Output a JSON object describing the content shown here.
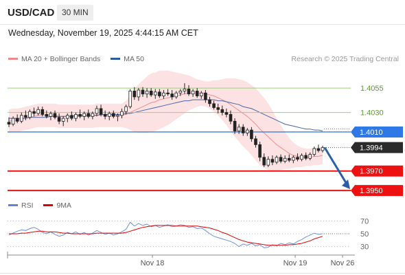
{
  "header": {
    "pair": "USD/CAD",
    "timeframe": "30 MIN",
    "datetime": "Wednesday, November 19, 2025 4:44:15 AM CET"
  },
  "legend": {
    "items": [
      {
        "label": "MA 20 + Bollinger Bands",
        "color": "#f08a8a"
      },
      {
        "label": "MA 50",
        "color": "#2a5b9e"
      }
    ],
    "credit": "Research © 2025 Trading Central"
  },
  "rsi_legend": {
    "items": [
      {
        "label": "RSI",
        "color": "#5b84d6"
      },
      {
        "label": "9MA",
        "color": "#e00000"
      }
    ]
  },
  "chart_data": {
    "type": "candlestick",
    "y_range": [
      1.3943,
      1.4072
    ],
    "levels": [
      {
        "value": 1.4055,
        "label": "1.4055",
        "style": "green-thin"
      },
      {
        "value": 1.403,
        "label": "1.4030",
        "style": "green-thin"
      },
      {
        "value": 1.401,
        "label": "1.4010",
        "style": "blue-badge"
      },
      {
        "value": 1.3994,
        "label": "1.3994",
        "style": "current-price"
      },
      {
        "value": 1.397,
        "label": "1.3970",
        "style": "red-badge"
      },
      {
        "value": 1.395,
        "label": "1.3950",
        "style": "red-badge"
      }
    ],
    "x_labels": [
      "Nov 18",
      "Nov 19",
      "Nov 26"
    ],
    "candles_ohlc": [
      [
        1.402,
        1.4025,
        1.4015,
        1.4018
      ],
      [
        1.4018,
        1.4026,
        1.4016,
        1.4024
      ],
      [
        1.4024,
        1.4028,
        1.4019,
        1.4021
      ],
      [
        1.4021,
        1.403,
        1.4019,
        1.4027
      ],
      [
        1.4027,
        1.4032,
        1.4022,
        1.4025
      ],
      [
        1.4025,
        1.4033,
        1.4023,
        1.4031
      ],
      [
        1.4031,
        1.4035,
        1.4026,
        1.4029
      ],
      [
        1.4029,
        1.4036,
        1.4027,
        1.4033
      ],
      [
        1.4033,
        1.4036,
        1.4026,
        1.4028
      ],
      [
        1.4028,
        1.4032,
        1.4024,
        1.4026
      ],
      [
        1.4026,
        1.4031,
        1.4022,
        1.4029
      ],
      [
        1.4029,
        1.4032,
        1.4023,
        1.4025
      ],
      [
        1.4025,
        1.4029,
        1.4018,
        1.4021
      ],
      [
        1.4021,
        1.4026,
        1.4016,
        1.4024
      ],
      [
        1.4024,
        1.4029,
        1.402,
        1.4027
      ],
      [
        1.4027,
        1.4031,
        1.4022,
        1.4024
      ],
      [
        1.4024,
        1.403,
        1.4021,
        1.4028
      ],
      [
        1.4028,
        1.4033,
        1.4024,
        1.4026
      ],
      [
        1.4026,
        1.4031,
        1.4022,
        1.4029
      ],
      [
        1.4029,
        1.4033,
        1.4024,
        1.4026
      ],
      [
        1.4026,
        1.4031,
        1.4023,
        1.4029
      ],
      [
        1.4029,
        1.4037,
        1.4026,
        1.4034
      ],
      [
        1.4034,
        1.4038,
        1.4026,
        1.4028
      ],
      [
        1.4028,
        1.4032,
        1.4023,
        1.4026
      ],
      [
        1.4026,
        1.4031,
        1.4022,
        1.4029
      ],
      [
        1.4029,
        1.4032,
        1.4024,
        1.4026
      ],
      [
        1.4026,
        1.4029,
        1.4021,
        1.4027
      ],
      [
        1.4027,
        1.4034,
        1.4024,
        1.4031
      ],
      [
        1.4031,
        1.4038,
        1.4028,
        1.4036
      ],
      [
        1.4036,
        1.4054,
        1.4034,
        1.4052
      ],
      [
        1.4052,
        1.4056,
        1.4043,
        1.4046
      ],
      [
        1.4046,
        1.4055,
        1.4042,
        1.4053
      ],
      [
        1.4053,
        1.4056,
        1.4046,
        1.4049
      ],
      [
        1.4049,
        1.4055,
        1.4045,
        1.4052
      ],
      [
        1.4052,
        1.4055,
        1.4046,
        1.4048
      ],
      [
        1.4048,
        1.4054,
        1.4044,
        1.4051
      ],
      [
        1.4051,
        1.4054,
        1.4045,
        1.4047
      ],
      [
        1.4047,
        1.4053,
        1.4044,
        1.405
      ],
      [
        1.405,
        1.4054,
        1.4047,
        1.4049
      ],
      [
        1.4049,
        1.4053,
        1.4043,
        1.4046
      ],
      [
        1.4046,
        1.4052,
        1.4044,
        1.405
      ],
      [
        1.405,
        1.4054,
        1.4047,
        1.4052
      ],
      [
        1.4052,
        1.406,
        1.4049,
        1.4054
      ],
      [
        1.4054,
        1.4058,
        1.4047,
        1.4049
      ],
      [
        1.4049,
        1.4054,
        1.4046,
        1.4052
      ],
      [
        1.4052,
        1.4055,
        1.4045,
        1.4047
      ],
      [
        1.4047,
        1.4052,
        1.4044,
        1.405
      ],
      [
        1.405,
        1.4053,
        1.404,
        1.4043
      ],
      [
        1.4043,
        1.4046,
        1.4036,
        1.4039
      ],
      [
        1.4039,
        1.4042,
        1.4033,
        1.4035
      ],
      [
        1.4035,
        1.4039,
        1.4029,
        1.4033
      ],
      [
        1.4033,
        1.4037,
        1.4027,
        1.403
      ],
      [
        1.403,
        1.4034,
        1.4025,
        1.4028
      ],
      [
        1.4028,
        1.4032,
        1.4018,
        1.4021
      ],
      [
        1.4021,
        1.4024,
        1.4008,
        1.4011
      ],
      [
        1.4011,
        1.4018,
        1.4008,
        1.4015
      ],
      [
        1.4015,
        1.4018,
        1.4006,
        1.4009
      ],
      [
        1.4009,
        1.4014,
        1.4006,
        1.4012
      ],
      [
        1.4012,
        1.4015,
        1.4,
        1.4003
      ],
      [
        1.4003,
        1.4006,
        1.3994,
        1.3997
      ],
      [
        1.3997,
        1.4,
        1.398,
        1.3984
      ],
      [
        1.3984,
        1.3988,
        1.3974,
        1.3976
      ],
      [
        1.3976,
        1.3985,
        1.3974,
        1.3982
      ],
      [
        1.3982,
        1.3986,
        1.3976,
        1.3979
      ],
      [
        1.3979,
        1.3986,
        1.3977,
        1.3984
      ],
      [
        1.3984,
        1.3987,
        1.3978,
        1.398
      ],
      [
        1.398,
        1.3986,
        1.3978,
        1.3983
      ],
      [
        1.3983,
        1.3987,
        1.3979,
        1.3981
      ],
      [
        1.3981,
        1.3986,
        1.3978,
        1.3984
      ],
      [
        1.3984,
        1.3988,
        1.398,
        1.3982
      ],
      [
        1.3982,
        1.3988,
        1.398,
        1.3986
      ],
      [
        1.3986,
        1.3989,
        1.3981,
        1.3983
      ],
      [
        1.3983,
        1.3989,
        1.3981,
        1.3987
      ],
      [
        1.3987,
        1.3995,
        1.3985,
        1.3993
      ],
      [
        1.3993,
        1.3997,
        1.3989,
        1.3991
      ],
      [
        1.3991,
        1.3996,
        1.3989,
        1.3994
      ]
    ],
    "ma20": [
      1.4021,
      1.4022,
      1.4022,
      1.4023,
      1.4024,
      1.4025,
      1.4026,
      1.4027,
      1.4027,
      1.4027,
      1.4027,
      1.4027,
      1.4026,
      1.4026,
      1.4026,
      1.4026,
      1.4026,
      1.4026,
      1.4026,
      1.4026,
      1.4026,
      1.4027,
      1.4027,
      1.4027,
      1.4027,
      1.4027,
      1.4027,
      1.4027,
      1.4028,
      1.403,
      1.4032,
      1.4034,
      1.4036,
      1.4038,
      1.404,
      1.4041,
      1.4043,
      1.4044,
      1.4045,
      1.4046,
      1.4047,
      1.4048,
      1.4049,
      1.405,
      1.405,
      1.405,
      1.405,
      1.4049,
      1.4048,
      1.4047,
      1.4045,
      1.4043,
      1.4041,
      1.4038,
      1.4035,
      1.4032,
      1.4029,
      1.4026,
      1.4022,
      1.4018,
      1.4013,
      1.4009,
      1.4005,
      1.4001,
      1.3997,
      1.3994,
      1.3991,
      1.3988,
      1.3986,
      1.3985,
      1.3984,
      1.3984,
      1.3984,
      1.3985,
      1.3985,
      1.3986
    ],
    "bb_width": [
      0.0012,
      0.0012,
      0.0012,
      0.0012,
      0.0012,
      0.0012,
      0.0012,
      0.0012,
      0.0012,
      0.0012,
      0.0012,
      0.0012,
      0.0012,
      0.0012,
      0.0012,
      0.0012,
      0.0012,
      0.0012,
      0.0012,
      0.0012,
      0.0012,
      0.0012,
      0.0012,
      0.0012,
      0.0012,
      0.0012,
      0.0012,
      0.0012,
      0.0014,
      0.0018,
      0.0022,
      0.0025,
      0.0027,
      0.0029,
      0.003,
      0.003,
      0.003,
      0.0029,
      0.0028,
      0.0026,
      0.0024,
      0.0022,
      0.002,
      0.0018,
      0.0016,
      0.0014,
      0.0013,
      0.0013,
      0.0014,
      0.0016,
      0.0018,
      0.0021,
      0.0024,
      0.0027,
      0.003,
      0.0032,
      0.0034,
      0.0035,
      0.0036,
      0.0037,
      0.0037,
      0.0036,
      0.0034,
      0.0031,
      0.0027,
      0.0023,
      0.0019,
      0.0016,
      0.0013,
      0.0011,
      0.001,
      0.0009,
      0.0009,
      0.0009,
      0.0009,
      0.0009
    ],
    "ma50": [
      1.4024,
      1.4024,
      1.4024,
      1.4024,
      1.4024,
      1.4025,
      1.4025,
      1.4025,
      1.4025,
      1.4025,
      1.4026,
      1.4026,
      1.4026,
      1.4026,
      1.4026,
      1.4026,
      1.4027,
      1.4027,
      1.4027,
      1.4027,
      1.4027,
      1.4027,
      1.4028,
      1.4028,
      1.4028,
      1.4028,
      1.4028,
      1.4028,
      1.4029,
      1.4029,
      1.403,
      1.4031,
      1.4032,
      1.4033,
      1.4034,
      1.4035,
      1.4036,
      1.4037,
      1.4038,
      1.4039,
      1.404,
      1.4041,
      1.4042,
      1.4042,
      1.4043,
      1.4043,
      1.4043,
      1.4043,
      1.4043,
      1.4043,
      1.4042,
      1.4042,
      1.4041,
      1.404,
      1.4039,
      1.4038,
      1.4036,
      1.4035,
      1.4034,
      1.4032,
      1.403,
      1.4028,
      1.4026,
      1.4024,
      1.4022,
      1.402,
      1.4018,
      1.4017,
      1.4016,
      1.4015,
      1.4014,
      1.4013,
      1.4013,
      1.4012,
      1.4012,
      1.4011
    ],
    "forecast": {
      "from": 1.3994,
      "to": 1.395
    },
    "rsi": {
      "y_range": [
        20,
        80
      ],
      "ticks": [
        70,
        50,
        30
      ],
      "rsi_values": [
        48,
        51,
        54,
        56,
        55,
        58,
        60,
        57,
        52,
        50,
        53,
        49,
        46,
        48,
        52,
        50,
        53,
        49,
        52,
        48,
        51,
        55,
        52,
        49,
        51,
        48,
        50,
        53,
        57,
        68,
        62,
        66,
        63,
        65,
        61,
        63,
        60,
        62,
        64,
        61,
        62,
        64,
        63,
        60,
        61,
        58,
        59,
        55,
        50,
        46,
        44,
        42,
        40,
        38,
        35,
        30,
        34,
        32,
        35,
        31,
        33,
        28,
        29,
        33,
        31,
        35,
        33,
        36,
        34,
        38,
        41,
        45,
        48,
        51,
        49,
        50
      ],
      "ma9_values": [
        50,
        50,
        50,
        51,
        51,
        52,
        53,
        54,
        54,
        53,
        53,
        53,
        52,
        51,
        51,
        50,
        50,
        50,
        50,
        50,
        50,
        51,
        51,
        51,
        51,
        51,
        51,
        51,
        52,
        54,
        56,
        58,
        60,
        61,
        62,
        63,
        63,
        63,
        63,
        63,
        62,
        62,
        62,
        62,
        62,
        62,
        61,
        60,
        59,
        57,
        55,
        52,
        50,
        47,
        44,
        41,
        39,
        37,
        36,
        35,
        34,
        33,
        32,
        32,
        32,
        32,
        32,
        33,
        33,
        34,
        35,
        37,
        39,
        42,
        44,
        46
      ],
      "labels": [
        "70",
        "50",
        "30"
      ]
    }
  }
}
